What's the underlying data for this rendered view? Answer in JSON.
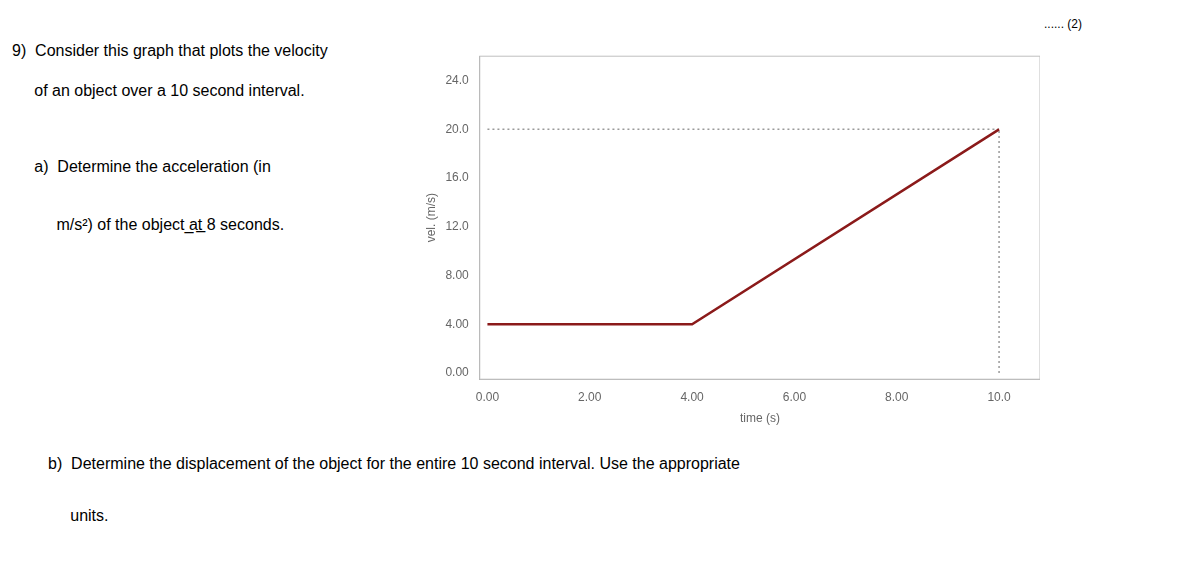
{
  "chart_data": {
    "type": "line",
    "xlabel": "time (s)",
    "ylabel": "vel. (m/s)",
    "series": [
      {
        "x": [
          0.0,
          4.0,
          10.0
        ],
        "values": [
          4.0,
          4.0,
          20.0
        ],
        "color": "#8B1A1A",
        "line_style": "solid"
      },
      {
        "x": [
          0.0,
          10.0
        ],
        "values": [
          20.0,
          20.0
        ],
        "color": "#999999",
        "line_style": "dotted"
      },
      {
        "x": [
          10.0,
          10.0
        ],
        "values": [
          0.0,
          20.0
        ],
        "color": "#999999",
        "line_style": "dotted"
      }
    ],
    "xlim": [
      -0.15,
      10.8
    ],
    "ylim": [
      -0.5,
      26.0
    ],
    "xticks": [
      {
        "value": 0,
        "label": "0.00"
      },
      {
        "value": 2,
        "label": "2.00"
      },
      {
        "value": 4,
        "label": "4.00"
      },
      {
        "value": 6,
        "label": "6.00"
      },
      {
        "value": 8,
        "label": "8.00"
      },
      {
        "value": 10,
        "label": "10.0"
      }
    ],
    "yticks": [
      {
        "value": 0,
        "label": "0.00"
      },
      {
        "value": 4,
        "label": "4.00"
      },
      {
        "value": 8,
        "label": "8.00"
      },
      {
        "value": 12,
        "label": "12.0"
      },
      {
        "value": 16,
        "label": "16.0"
      },
      {
        "value": 20,
        "label": "20.0"
      },
      {
        "value": 24,
        "label": "24.0"
      }
    ],
    "grid": false,
    "annotations": [
      "...... (2)",
      "9)  Consider this graph that plots the velocity",
      "     of an object over a 10 second interval.",
      "     a)  Determine the acceleration (in",
      "          m/s²) of the object ̲at̲ 8 seconds.",
      "b)  Determine the displacement of the object for the entire 10 second interval. Use the appropriate",
      "     units."
    ]
  }
}
